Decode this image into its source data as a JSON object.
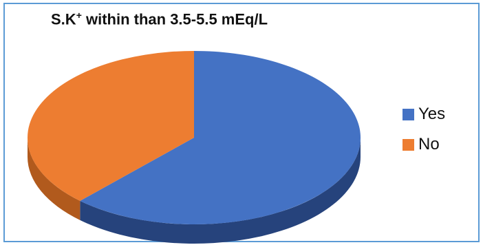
{
  "chart_data": {
    "type": "pie",
    "title": "S.K",
    "title_superscript": "+",
    "title_rest": " within than 3.5-5.5 mEq/L",
    "three_d": true,
    "legend_position": "right",
    "slices": [
      {
        "label": "Yes",
        "value": 62,
        "color": "#4472c4",
        "side_color": "#26437c"
      },
      {
        "label": "No",
        "value": 38,
        "color": "#ed7d31",
        "side_color": "#b15a1d"
      }
    ]
  }
}
